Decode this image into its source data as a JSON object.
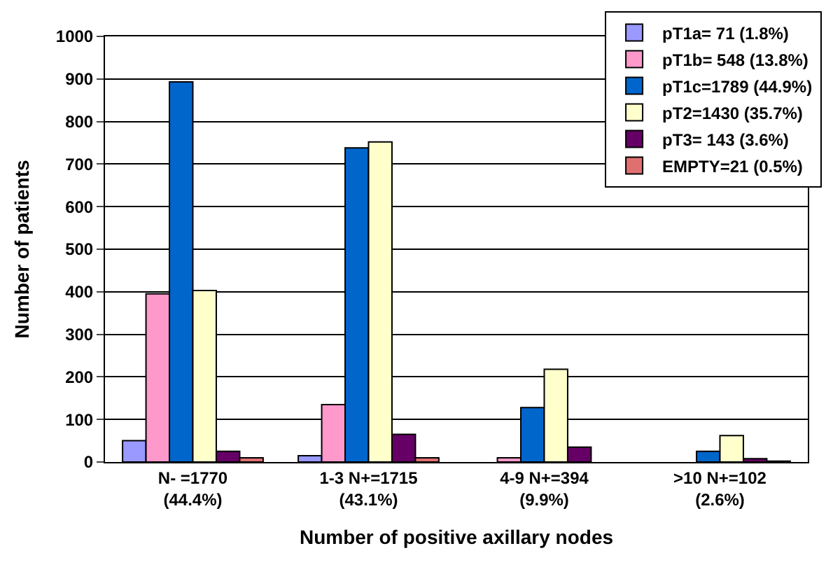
{
  "chart_data": {
    "type": "bar",
    "xlabel": "Number of positive axillary nodes",
    "ylabel": "Number of patients",
    "categories": [
      "N- =1770\n(44.4%)",
      "1-3 N+=1715\n(43.1%)",
      "4-9 N+=394\n(9.9%)",
      ">10 N+=102\n(2.6%)"
    ],
    "series": [
      {
        "name": "pT1a= 71 (1.8%)",
        "color": "#9999ff",
        "values": [
          50,
          15,
          null,
          null
        ]
      },
      {
        "name": "pT1b= 548 (13.8%)",
        "color": "#ff99cc",
        "values": [
          395,
          135,
          10,
          null
        ]
      },
      {
        "name": "pT1c=1789 (44.9%)",
        "color": "#0066cc",
        "values": [
          893,
          738,
          128,
          25
        ]
      },
      {
        "name": "pT2=1430 (35.7%)",
        "color": "#ffffcc",
        "values": [
          403,
          752,
          218,
          62
        ]
      },
      {
        "name": "pT3= 143 (3.6%)",
        "color": "#660066",
        "values": [
          25,
          65,
          35,
          8
        ]
      },
      {
        "name": "EMPTY=21 (0.5%)",
        "color": "#e07070",
        "values": [
          10,
          10,
          null,
          2
        ]
      }
    ],
    "ylim": [
      0,
      1000
    ],
    "yticks": [
      0,
      100,
      200,
      300,
      400,
      500,
      600,
      700,
      800,
      900,
      1000
    ],
    "grid": "y",
    "legend": "top right"
  }
}
